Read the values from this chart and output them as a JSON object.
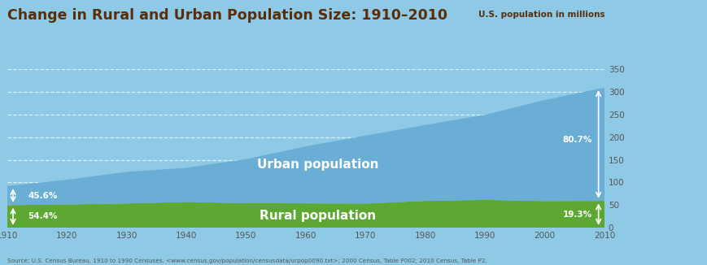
{
  "title": "Change in Rural and Urban Population Size: 1910–2010",
  "ylabel": "U.S. population in millions",
  "source": "Source: U.S. Census Bureau, 1910 to 1990 Censuses. <www.census.gov/population/censusdata/urpop0090.txt>; 2000 Census, Table P002; 2010 Census, Table P2.",
  "years": [
    1910,
    1920,
    1930,
    1940,
    1950,
    1960,
    1970,
    1980,
    1990,
    2000,
    2010
  ],
  "rural_pop": [
    50.2,
    51.6,
    53.8,
    57.2,
    54.5,
    54.1,
    53.6,
    59.5,
    61.7,
    59.1,
    59.5
  ],
  "urban_pop": [
    42.0,
    54.4,
    69.4,
    75.0,
    96.8,
    125.3,
    149.6,
    167.0,
    187.1,
    222.4,
    249.3
  ],
  "bg_color_top": "#9dd4ea",
  "bg_color_bottom": "#7bbdd9",
  "bg_color": "#8ecae6",
  "urban_color": "#6aadd5",
  "rural_color": "#5da832",
  "title_color": "#5c2d0a",
  "ylabel_color": "#5c2d0a",
  "grid_color": "#aad0e4",
  "tick_color": "#555555",
  "ylim": [
    0,
    350
  ],
  "yticks": [
    0,
    50,
    100,
    150,
    200,
    250,
    300,
    350
  ],
  "urban_label": "Urban population",
  "rural_label": "Rural population",
  "pct_1910_urban": "45.6%",
  "pct_1910_rural": "54.4%",
  "pct_2010_urban": "80.7%",
  "pct_2010_rural": "19.3%"
}
